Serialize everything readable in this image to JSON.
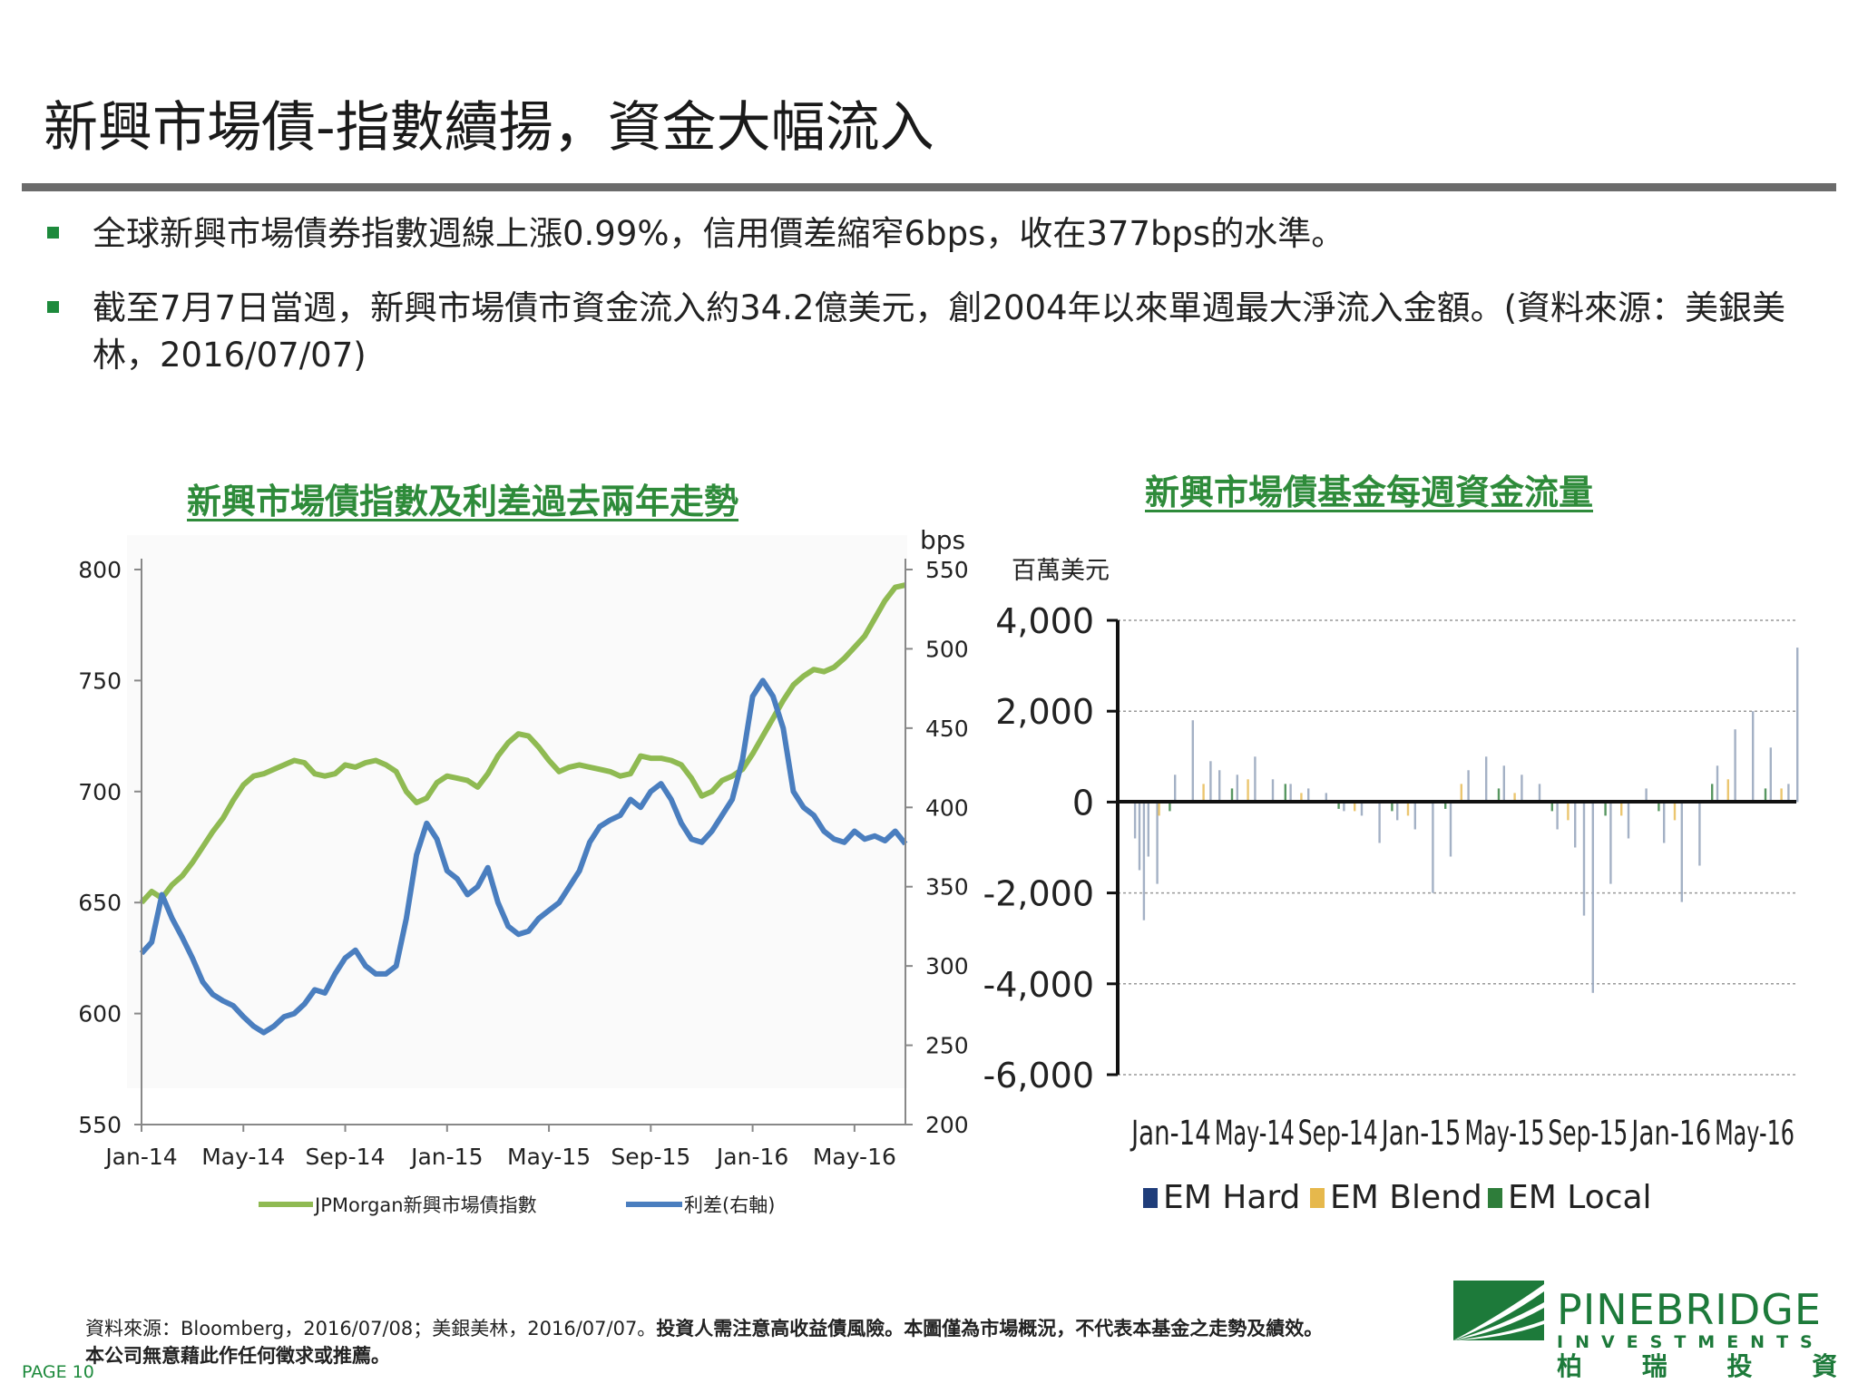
{
  "title": "新興市場債-指數續揚，資金大幅流入",
  "bullets": [
    "全球新興市場債券指數週線上漲0.99%，信用價差縮窄6bps，收在377bps的水準。",
    "截至7月7日當週，新興市場債市資金流入約34.2億美元，創2004年以來單週最大淨流入金額。(資料來源：美銀美林，2016/07/07)"
  ],
  "chart_data": [
    {
      "type": "line",
      "title": "新興市場債指數及利差過去兩年走勢",
      "categories": [
        "Jan-14",
        "May-14",
        "Sep-14",
        "Jan-15",
        "May-15",
        "Sep-15",
        "Jan-16",
        "May-16"
      ],
      "left_axis": {
        "ylim": [
          550,
          800
        ],
        "ticks": [
          "550",
          "600",
          "650",
          "700",
          "750",
          "800"
        ]
      },
      "right_axis": {
        "label": "bps",
        "ylim": [
          200,
          550
        ],
        "ticks": [
          "200",
          "250",
          "300",
          "350",
          "400",
          "450",
          "500",
          "550"
        ]
      },
      "legend_position": "bottom",
      "colors": {
        "index": "#8fba52",
        "spread": "#4a7ebf"
      },
      "series": [
        {
          "name": "JPMorgan新興市場債指數",
          "axis": "left",
          "x": [
            0,
            0.1,
            0.2,
            0.3,
            0.4,
            0.5,
            0.6,
            0.7,
            0.8,
            0.9,
            1,
            1.1,
            1.2,
            1.3,
            1.4,
            1.5,
            1.6,
            1.7,
            1.8,
            1.9,
            2,
            2.1,
            2.2,
            2.3,
            2.4,
            2.5,
            2.6,
            2.7,
            2.8,
            2.9,
            3,
            3.1,
            3.2,
            3.3,
            3.4,
            3.5,
            3.6,
            3.7,
            3.8,
            3.9,
            4,
            4.1,
            4.2,
            4.3,
            4.4,
            4.5,
            4.6,
            4.7,
            4.8,
            4.9,
            5,
            5.1,
            5.2,
            5.3,
            5.4,
            5.5,
            5.6,
            5.7,
            5.8,
            5.9,
            6,
            6.1,
            6.2,
            6.3,
            6.4,
            6.5,
            6.6,
            6.7,
            6.8,
            6.9,
            7,
            7.1,
            7.2,
            7.3,
            7.4,
            7.5
          ],
          "values": [
            650,
            655,
            652,
            658,
            662,
            668,
            675,
            682,
            688,
            696,
            703,
            707,
            708,
            710,
            712,
            714,
            713,
            708,
            707,
            708,
            712,
            711,
            713,
            714,
            712,
            709,
            700,
            695,
            697,
            704,
            707,
            706,
            705,
            702,
            708,
            716,
            722,
            726,
            725,
            720,
            714,
            709,
            711,
            712,
            711,
            710,
            709,
            707,
            708,
            716,
            715,
            715,
            714,
            712,
            706,
            698,
            700,
            705,
            707,
            710,
            717,
            725,
            733,
            741,
            748,
            752,
            755,
            754,
            756,
            760,
            765,
            770,
            778,
            786,
            792,
            793
          ]
        },
        {
          "name": "利差(右軸)",
          "axis": "right",
          "x": [
            0,
            0.1,
            0.2,
            0.3,
            0.4,
            0.5,
            0.6,
            0.7,
            0.8,
            0.9,
            1,
            1.1,
            1.2,
            1.3,
            1.4,
            1.5,
            1.6,
            1.7,
            1.8,
            1.9,
            2,
            2.1,
            2.2,
            2.3,
            2.4,
            2.5,
            2.6,
            2.7,
            2.8,
            2.9,
            3,
            3.1,
            3.2,
            3.3,
            3.4,
            3.5,
            3.6,
            3.7,
            3.8,
            3.9,
            4,
            4.1,
            4.2,
            4.3,
            4.4,
            4.5,
            4.6,
            4.7,
            4.8,
            4.9,
            5,
            5.1,
            5.2,
            5.3,
            5.4,
            5.5,
            5.6,
            5.7,
            5.8,
            5.9,
            6,
            6.1,
            6.2,
            6.3,
            6.4,
            6.5,
            6.6,
            6.7,
            6.8,
            6.9,
            7,
            7.1,
            7.2,
            7.3,
            7.4,
            7.5
          ],
          "values": [
            308,
            315,
            345,
            330,
            318,
            305,
            290,
            282,
            278,
            275,
            268,
            262,
            258,
            262,
            268,
            270,
            276,
            285,
            283,
            295,
            305,
            310,
            300,
            295,
            295,
            300,
            330,
            370,
            390,
            380,
            360,
            355,
            345,
            350,
            362,
            340,
            325,
            320,
            322,
            330,
            335,
            340,
            350,
            360,
            378,
            388,
            392,
            395,
            405,
            400,
            410,
            415,
            405,
            390,
            380,
            378,
            385,
            395,
            405,
            430,
            470,
            480,
            470,
            450,
            410,
            400,
            395,
            385,
            380,
            378,
            385,
            380,
            382,
            379,
            385,
            377
          ]
        }
      ]
    },
    {
      "type": "bar",
      "title": "新興市場債基金每週資金流量",
      "ylabel": "百萬美元",
      "ylim": [
        -6000,
        4000
      ],
      "y_ticks": [
        "4,000",
        "2,000",
        "0",
        "-2,000",
        "-4,000",
        "-6,000"
      ],
      "categories": [
        "Jan-14",
        "May-14",
        "Sep-14",
        "Jan-15",
        "May-15",
        "Sep-15",
        "Jan-16",
        "May-16"
      ],
      "legend_position": "bottom",
      "colors": {
        "em_hard": "#1f3d7a",
        "em_blend": "#e6b84c",
        "em_local": "#2e7d3a"
      },
      "series": [
        {
          "name": "EM Hard",
          "x": [
            0.05,
            0.1,
            0.15,
            0.2,
            0.3,
            0.5,
            0.7,
            0.9,
            1.0,
            1.2,
            1.4,
            1.6,
            1.8,
            2.0,
            2.2,
            2.4,
            2.6,
            2.8,
            3.0,
            3.2,
            3.4,
            3.6,
            3.8,
            4.0,
            4.2,
            4.4,
            4.6,
            4.8,
            5.0,
            5.1,
            5.2,
            5.4,
            5.6,
            5.8,
            6.0,
            6.2,
            6.4,
            6.6,
            6.8,
            7.0,
            7.2,
            7.4,
            7.5
          ],
          "values": [
            -800,
            -1500,
            -2600,
            -1200,
            -1800,
            600,
            1800,
            900,
            700,
            600,
            1000,
            500,
            400,
            300,
            200,
            -200,
            -300,
            -900,
            -400,
            -600,
            -2000,
            -1200,
            700,
            1000,
            800,
            600,
            400,
            -600,
            -1000,
            -2500,
            -4200,
            -1800,
            -800,
            300,
            -900,
            -2200,
            -1400,
            800,
            1600,
            2000,
            1200,
            400,
            3400
          ]
        },
        {
          "name": "EM Blend",
          "x": [
            0.3,
            0.8,
            1.3,
            1.9,
            2.5,
            3.1,
            3.7,
            4.3,
            4.9,
            5.5,
            6.1,
            6.7,
            7.3
          ],
          "values": [
            -300,
            400,
            500,
            200,
            -200,
            -300,
            400,
            200,
            -400,
            -300,
            -400,
            500,
            300
          ]
        },
        {
          "name": "EM Local",
          "x": [
            0.4,
            1.1,
            1.7,
            2.3,
            2.9,
            3.5,
            4.1,
            4.7,
            5.3,
            5.9,
            6.5,
            7.1
          ],
          "values": [
            -200,
            300,
            400,
            -150,
            -200,
            -150,
            300,
            -200,
            -300,
            -200,
            400,
            300
          ]
        }
      ]
    }
  ],
  "footnote": {
    "source": "資料來源：Bloomberg，2016/07/08；美銀美林，2016/07/07。",
    "warning": "投資人需注意高收益債風險。本圖僅為市場概況，不代表本基金之走勢及績效。",
    "line2": "本公司無意藉此作任何徵求或推薦。"
  },
  "logo": {
    "brand": "PINEBRIDGE",
    "sub": "INVESTMENTS",
    "chinese": "柏 瑞 投 資"
  },
  "page_label": "PAGE 10"
}
